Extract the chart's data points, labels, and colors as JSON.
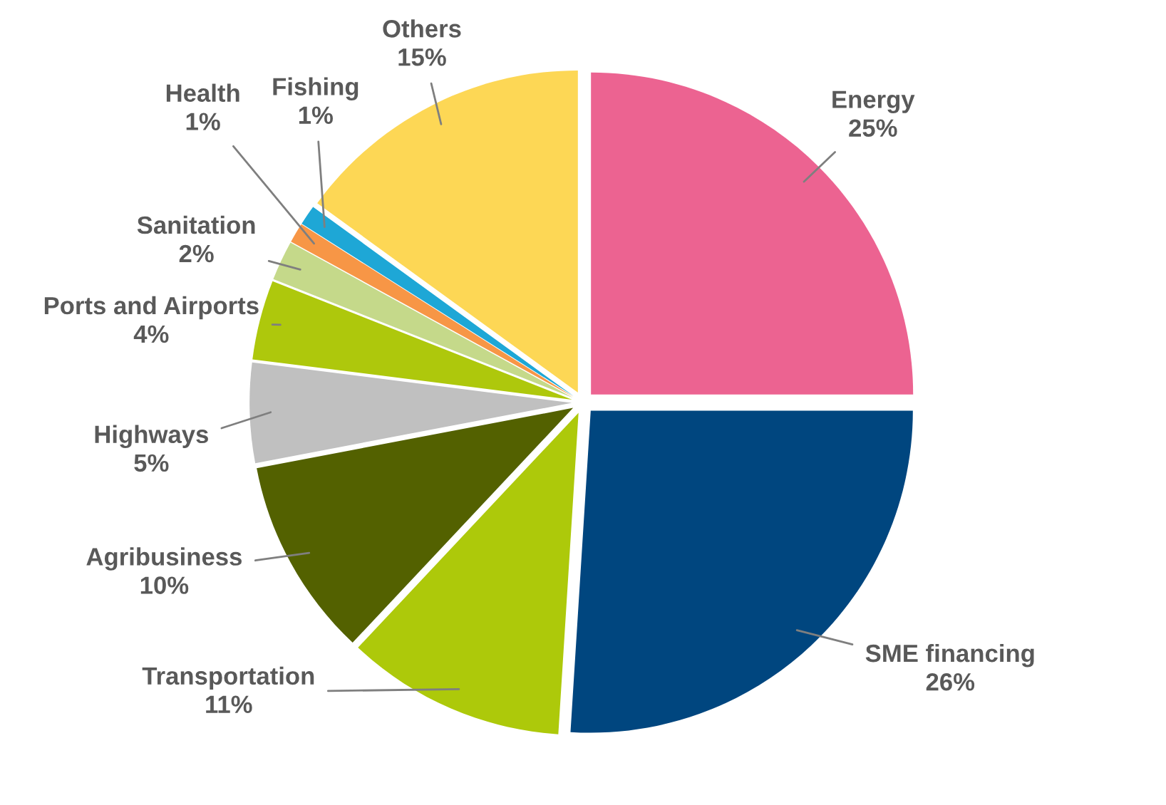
{
  "chart_data": {
    "type": "pie",
    "categories": [
      "Energy",
      "SME financing",
      "Transportation",
      "Agribusiness",
      "Highways",
      "Ports and Airports",
      "Sanitation",
      "Health",
      "Fishing",
      "Others"
    ],
    "values": [
      25,
      26,
      11,
      10,
      5,
      4,
      2,
      1,
      1,
      15
    ],
    "value_labels": [
      "25%",
      "26%",
      "11%",
      "10%",
      "5%",
      "4%",
      "2%",
      "1%",
      "1%",
      "15%"
    ],
    "colors": [
      "#ec6391",
      "#00467f",
      "#adc90a",
      "#536100",
      "#c0c0c0",
      "#aec80c",
      "#c5d98a",
      "#f79646",
      "#1ea7d6",
      "#fdd755"
    ]
  }
}
